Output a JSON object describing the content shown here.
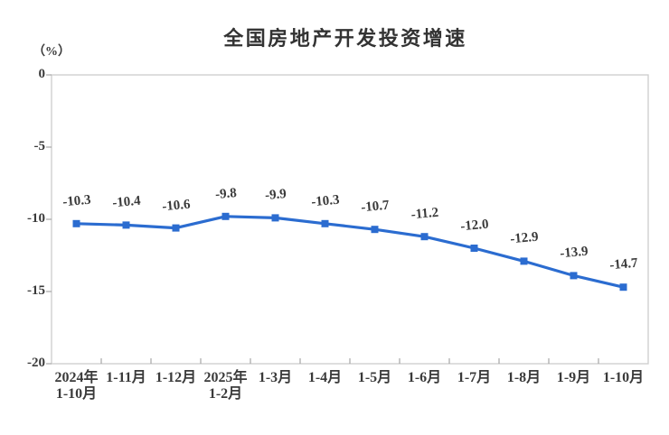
{
  "chart_data": {
    "type": "line",
    "title": "全国房地产开发投资增速",
    "unit_label": "（%）",
    "categories": [
      "2024年\n1-10月",
      "1-11月",
      "1-12月",
      "2025年\n1-2月",
      "1-3月",
      "1-4月",
      "1-5月",
      "1-6月",
      "1-7月",
      "1-8月",
      "1-9月",
      "1-10月"
    ],
    "values": [
      -10.3,
      -10.4,
      -10.6,
      -9.8,
      -9.9,
      -10.3,
      -10.7,
      -11.2,
      -12.0,
      -12.9,
      -13.9,
      -14.7
    ],
    "data_labels": [
      "-10.3",
      "-10.4",
      "-10.6",
      "-9.8",
      "-9.9",
      "-10.3",
      "-10.7",
      "-11.2",
      "-12.0",
      "-12.9",
      "-13.9",
      "-14.7"
    ],
    "ylim": [
      -20,
      0
    ],
    "yticks": [
      0,
      -5,
      -10,
      -15,
      -20
    ],
    "grid": false,
    "legend_position": "none",
    "colors": {
      "line": "#2B6CD0",
      "marker": "#2B6CD0",
      "plot_border": "#CFCFCF",
      "tick": "#A6A6A6",
      "text": "#3A3A3A",
      "title": "#333333"
    }
  }
}
